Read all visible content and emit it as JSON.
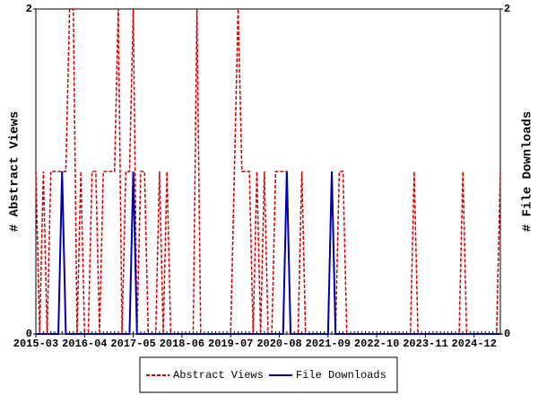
{
  "chart_data": {
    "type": "line",
    "ylabel": "# Abstract Views",
    "y2label": "# File Downloads",
    "ylim": [
      0,
      2
    ],
    "yticks": [
      0,
      2
    ],
    "y2lim": [
      0,
      2
    ],
    "y2ticks": [
      0,
      2
    ],
    "legend": "bottom",
    "categories": [
      "2015-03",
      null,
      null,
      null,
      null,
      null,
      null,
      null,
      null,
      null,
      null,
      null,
      null,
      "2016-04",
      null,
      null,
      null,
      null,
      null,
      null,
      null,
      null,
      null,
      null,
      null,
      null,
      "2017-05",
      null,
      null,
      null,
      null,
      null,
      null,
      null,
      null,
      null,
      null,
      null,
      null,
      "2018-06",
      null,
      null,
      null,
      null,
      null,
      null,
      null,
      null,
      null,
      null,
      null,
      null,
      "2019-07",
      null,
      null,
      null,
      null,
      null,
      null,
      null,
      null,
      null,
      null,
      null,
      null,
      "2020-08",
      null,
      null,
      null,
      null,
      null,
      null,
      null,
      null,
      null,
      null,
      null,
      null,
      "2021-09",
      null,
      null,
      null,
      null,
      null,
      null,
      null,
      null,
      null,
      null,
      null,
      null,
      "2022-10",
      null,
      null,
      null,
      null,
      null,
      null,
      null,
      null,
      null,
      null,
      null,
      null,
      "2023-11",
      null,
      null,
      null,
      null,
      null,
      null,
      null,
      null,
      null,
      null,
      null,
      null,
      "2024-12",
      null,
      null,
      null,
      null,
      null,
      null,
      null
    ],
    "series": [
      {
        "name": "Abstract Views",
        "color": "#cc0000",
        "dash": true,
        "values": [
          1,
          0,
          1,
          0,
          1,
          1,
          1,
          1,
          1,
          2,
          2,
          0,
          1,
          0,
          0,
          1,
          1,
          0,
          1,
          1,
          1,
          1,
          2,
          0,
          1,
          1,
          2,
          0,
          1,
          1,
          0,
          0,
          0,
          1,
          0,
          1,
          0,
          0,
          0,
          0,
          0,
          0,
          0,
          2,
          0,
          0,
          0,
          0,
          0,
          0,
          0,
          0,
          0,
          1,
          2,
          1,
          1,
          1,
          0,
          1,
          0,
          1,
          0,
          0,
          1,
          1,
          1,
          1,
          0,
          0,
          0,
          1,
          0,
          0,
          0,
          0,
          0,
          0,
          0,
          1,
          0,
          1,
          1,
          0,
          0,
          0,
          0,
          0,
          0,
          0,
          0,
          0,
          0,
          0,
          0,
          0,
          0,
          0,
          0,
          0,
          0,
          1,
          0,
          0,
          0,
          0,
          0,
          0,
          0,
          0,
          0,
          0,
          0,
          0,
          1,
          0,
          0,
          0,
          0,
          0,
          0,
          0,
          0,
          0,
          1
        ]
      },
      {
        "name": "File Downloads",
        "color": "#0000aa",
        "axis": "y2",
        "values": [
          0,
          0,
          0,
          0,
          0,
          0,
          0,
          1,
          0,
          0,
          0,
          0,
          0,
          0,
          0,
          0,
          0,
          0,
          0,
          0,
          0,
          0,
          0,
          0,
          0,
          0,
          1,
          0,
          0,
          0,
          0,
          0,
          0,
          0,
          0,
          0,
          0,
          0,
          0,
          0,
          0,
          0,
          0,
          0,
          0,
          0,
          0,
          0,
          0,
          0,
          0,
          0,
          0,
          0,
          0,
          0,
          0,
          0,
          0,
          0,
          0,
          0,
          0,
          0,
          0,
          0,
          0,
          1,
          0,
          0,
          0,
          0,
          0,
          0,
          0,
          0,
          0,
          0,
          0,
          1,
          0,
          0,
          0,
          0,
          0,
          0,
          0,
          0,
          0,
          0,
          0,
          0,
          0,
          0,
          0,
          0,
          0,
          0,
          0,
          0,
          0,
          0,
          0,
          0,
          0,
          0,
          0,
          0,
          0,
          0,
          0,
          0,
          0,
          0,
          0,
          0,
          0,
          0,
          0,
          0,
          0,
          0,
          0,
          0,
          0
        ]
      }
    ]
  }
}
